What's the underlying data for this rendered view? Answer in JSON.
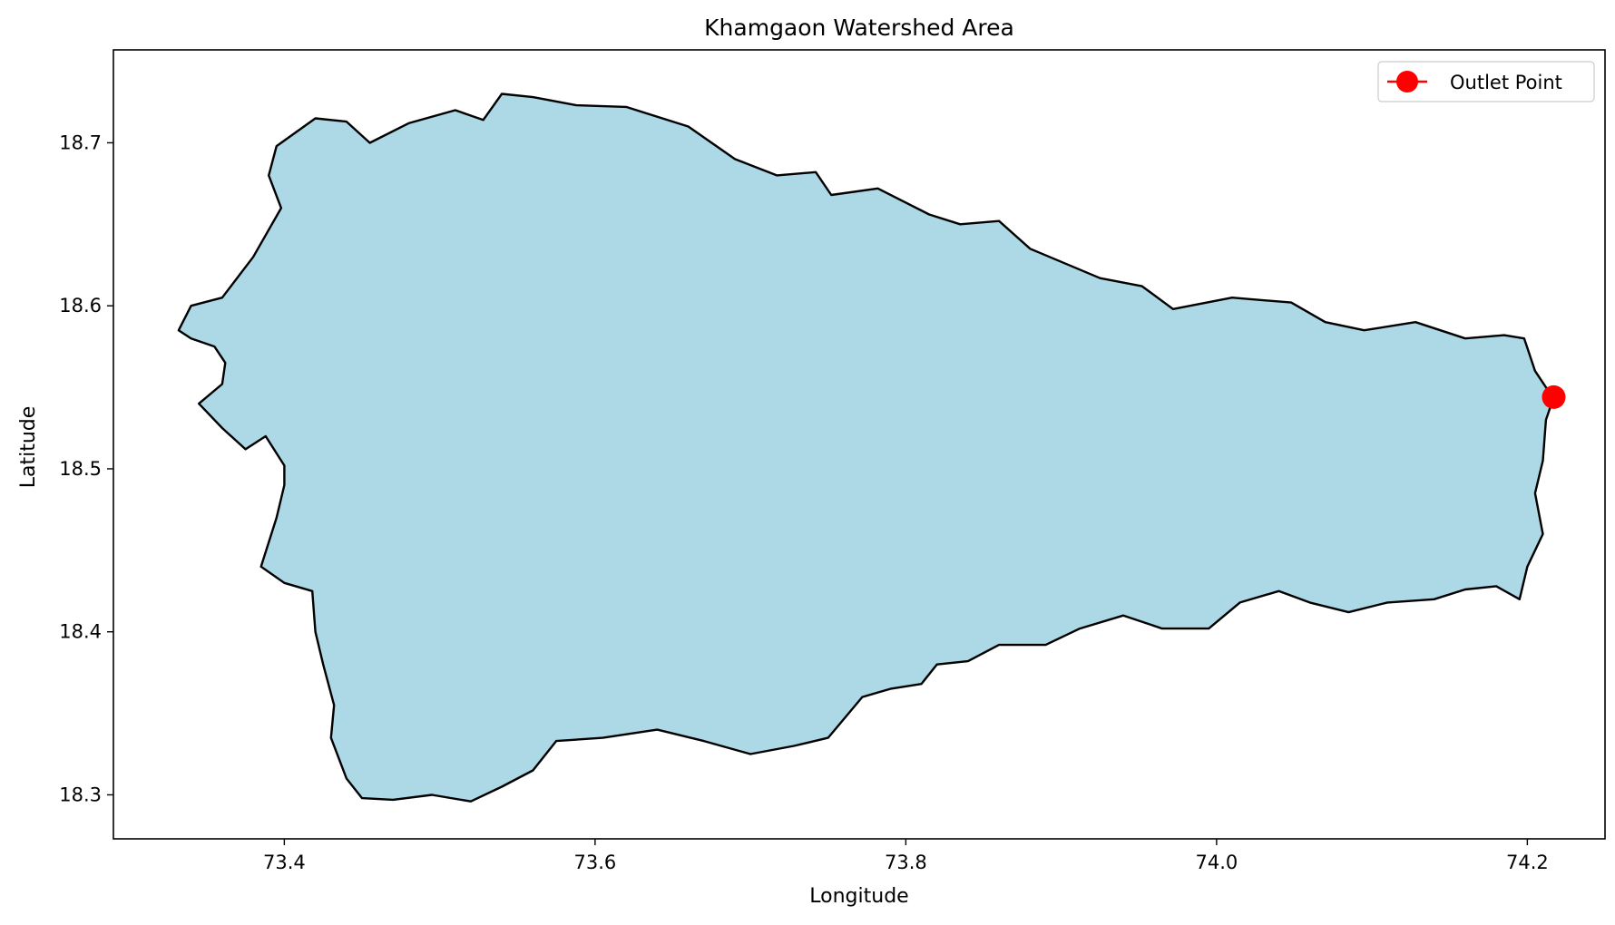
{
  "map": {
    "title": "Khamgaon Watershed Area",
    "xlabel": "Longitude",
    "ylabel": "Latitude",
    "xlim": [
      73.29,
      74.25
    ],
    "ylim": [
      18.273,
      18.757
    ],
    "xticks": [
      "73.4",
      "73.6",
      "73.8",
      "74.0",
      "74.2"
    ],
    "yticks": [
      "18.3",
      "18.4",
      "18.5",
      "18.6",
      "18.7"
    ],
    "fill_color": "#add8e6",
    "edge_color": "#000000",
    "legend": {
      "label": "Outlet Point",
      "placement": "upper right"
    },
    "outlet": {
      "lon": 74.217,
      "lat": 18.544,
      "color": "#ff0000"
    },
    "boundary": [
      [
        73.455,
        18.7
      ],
      [
        73.48,
        18.712
      ],
      [
        73.51,
        18.72
      ],
      [
        73.528,
        18.714
      ],
      [
        73.54,
        18.73
      ],
      [
        73.56,
        18.728
      ],
      [
        73.588,
        18.723
      ],
      [
        73.62,
        18.722
      ],
      [
        73.66,
        18.71
      ],
      [
        73.69,
        18.69
      ],
      [
        73.717,
        18.68
      ],
      [
        73.742,
        18.682
      ],
      [
        73.752,
        18.668
      ],
      [
        73.782,
        18.672
      ],
      [
        73.815,
        18.656
      ],
      [
        73.835,
        18.65
      ],
      [
        73.86,
        18.652
      ],
      [
        73.88,
        18.635
      ],
      [
        73.925,
        18.617
      ],
      [
        73.952,
        18.612
      ],
      [
        73.972,
        18.598
      ],
      [
        74.01,
        18.605
      ],
      [
        74.048,
        18.602
      ],
      [
        74.07,
        18.59
      ],
      [
        74.095,
        18.585
      ],
      [
        74.128,
        18.59
      ],
      [
        74.16,
        18.58
      ],
      [
        74.185,
        18.582
      ],
      [
        74.198,
        18.58
      ],
      [
        74.205,
        18.56
      ],
      [
        74.212,
        18.55
      ],
      [
        74.217,
        18.544
      ],
      [
        74.212,
        18.53
      ],
      [
        74.21,
        18.505
      ],
      [
        74.205,
        18.485
      ],
      [
        74.21,
        18.46
      ],
      [
        74.2,
        18.44
      ],
      [
        74.195,
        18.42
      ],
      [
        74.18,
        18.428
      ],
      [
        74.16,
        18.426
      ],
      [
        74.14,
        18.42
      ],
      [
        74.11,
        18.418
      ],
      [
        74.085,
        18.412
      ],
      [
        74.06,
        18.418
      ],
      [
        74.04,
        18.425
      ],
      [
        74.015,
        18.418
      ],
      [
        73.995,
        18.402
      ],
      [
        73.965,
        18.402
      ],
      [
        73.94,
        18.41
      ],
      [
        73.912,
        18.402
      ],
      [
        73.89,
        18.392
      ],
      [
        73.86,
        18.392
      ],
      [
        73.84,
        18.382
      ],
      [
        73.82,
        18.38
      ],
      [
        73.81,
        18.368
      ],
      [
        73.79,
        18.365
      ],
      [
        73.772,
        18.36
      ],
      [
        73.75,
        18.335
      ],
      [
        73.728,
        18.33
      ],
      [
        73.7,
        18.325
      ],
      [
        73.67,
        18.333
      ],
      [
        73.64,
        18.34
      ],
      [
        73.605,
        18.335
      ],
      [
        73.575,
        18.333
      ],
      [
        73.56,
        18.315
      ],
      [
        73.54,
        18.305
      ],
      [
        73.52,
        18.296
      ],
      [
        73.495,
        18.3
      ],
      [
        73.47,
        18.297
      ],
      [
        73.45,
        18.298
      ],
      [
        73.44,
        18.31
      ],
      [
        73.43,
        18.335
      ],
      [
        73.432,
        18.355
      ],
      [
        73.425,
        18.38
      ],
      [
        73.42,
        18.4
      ],
      [
        73.418,
        18.425
      ],
      [
        73.4,
        18.43
      ],
      [
        73.385,
        18.44
      ],
      [
        73.395,
        18.47
      ],
      [
        73.4,
        18.49
      ],
      [
        73.4,
        18.502
      ],
      [
        73.388,
        18.52
      ],
      [
        73.375,
        18.512
      ],
      [
        73.36,
        18.525
      ],
      [
        73.345,
        18.54
      ],
      [
        73.36,
        18.552
      ],
      [
        73.362,
        18.565
      ],
      [
        73.355,
        18.575
      ],
      [
        73.34,
        18.58
      ],
      [
        73.332,
        18.585
      ],
      [
        73.34,
        18.6
      ],
      [
        73.36,
        18.605
      ],
      [
        73.38,
        18.63
      ],
      [
        73.398,
        18.66
      ],
      [
        73.39,
        18.68
      ],
      [
        73.395,
        18.698
      ],
      [
        73.42,
        18.715
      ],
      [
        73.44,
        18.713
      ]
    ]
  }
}
